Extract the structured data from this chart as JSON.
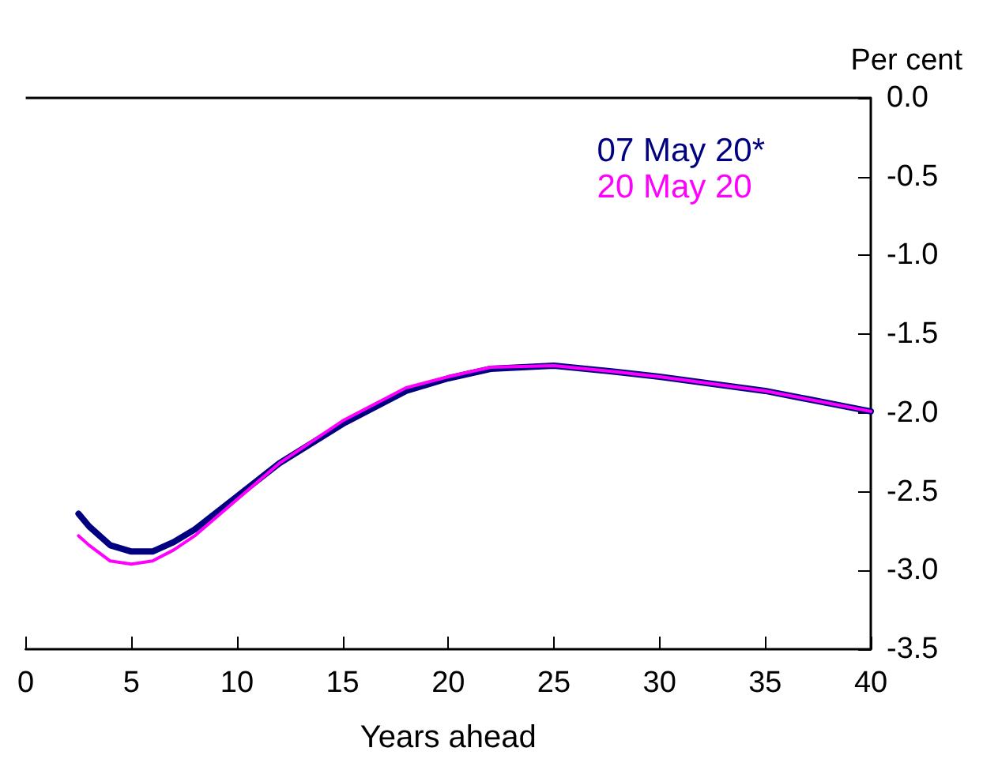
{
  "chart_data": {
    "type": "line",
    "xlabel": "Years ahead",
    "ylabel": "Per cent",
    "xlim": [
      0,
      40
    ],
    "xticks": [
      0,
      5,
      10,
      15,
      20,
      25,
      30,
      35,
      40
    ],
    "ylim": [
      -3.5,
      0
    ],
    "yticks": [
      {
        "value": -3.5,
        "label": "-3.5"
      },
      {
        "value": -3,
        "label": "-3.0"
      },
      {
        "value": -2.5,
        "label": "-2.5"
      },
      {
        "value": -2,
        "label": "-2.0"
      },
      {
        "value": -1.5,
        "label": "-1.5"
      },
      {
        "value": -1,
        "label": "-1.0"
      },
      {
        "value": -0.5,
        "label": "-0.5"
      },
      {
        "value": 0,
        "label": "0.0"
      }
    ],
    "x": [
      2.5,
      3,
      4,
      5,
      6,
      7,
      8,
      10,
      12,
      15,
      18,
      20,
      22,
      25,
      28,
      30,
      35,
      40
    ],
    "series": [
      {
        "name": "07 May 20*",
        "color": "#000080",
        "values": [
          -2.64,
          -2.72,
          -2.84,
          -2.88,
          -2.88,
          -2.82,
          -2.74,
          -2.53,
          -2.32,
          -2.07,
          -1.86,
          -1.78,
          -1.72,
          -1.7,
          -1.74,
          -1.77,
          -1.86,
          -1.99
        ]
      },
      {
        "name": "20 May 20",
        "color": "#ff00ff",
        "values": [
          -2.78,
          -2.84,
          -2.94,
          -2.96,
          -2.94,
          -2.87,
          -2.78,
          -2.55,
          -2.32,
          -2.05,
          -1.84,
          -1.77,
          -1.71,
          -1.7,
          -1.74,
          -1.77,
          -1.86,
          -1.99
        ]
      }
    ],
    "ref_lines": [
      {
        "axis": "y",
        "value": 0,
        "label": null,
        "color": "#000000"
      }
    ],
    "legend": "top right",
    "grid": false,
    "marker": "none",
    "line_style": "solid"
  }
}
